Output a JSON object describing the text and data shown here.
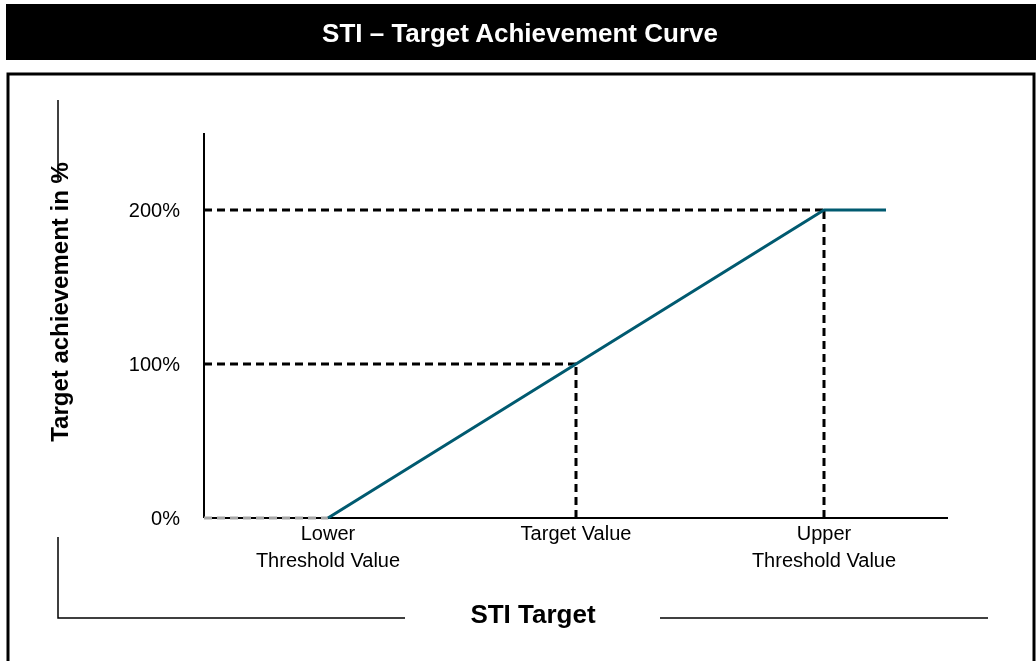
{
  "chart_data": {
    "type": "line",
    "title": "STI – Target Achievement Curve",
    "xlabel": "STI Target",
    "ylabel": "Target achievement  in %",
    "categories": [
      null,
      null,
      "Lower Threshold Value",
      null,
      null,
      null,
      "Target Value",
      null,
      null,
      null,
      "Upper Threshold Value",
      null,
      null
    ],
    "ylim": [
      0,
      250
    ],
    "yticks": [
      {
        "value": 0,
        "label": "0%"
      },
      {
        "value": 100,
        "label": "100%"
      },
      {
        "value": 200,
        "label": "200%"
      }
    ],
    "series": [
      {
        "values": [
          0,
          0,
          0,
          null,
          null,
          null,
          null,
          null,
          null,
          null,
          null,
          null,
          null
        ],
        "color": "#a6a6a6",
        "line_style": "dashed"
      },
      {
        "values": [
          null,
          null,
          0,
          25,
          50,
          75,
          100,
          125,
          150,
          175,
          200,
          200,
          null
        ],
        "color": "#005a70",
        "line_style": "solid"
      }
    ],
    "ref_lines": [
      {
        "axis": "y",
        "value": 100,
        "line_style": "dashed",
        "color": "#000000"
      },
      {
        "axis": "y",
        "value": 200,
        "line_style": "dashed",
        "color": "#000000"
      },
      {
        "axis": "x",
        "value": "Target Value",
        "line_style": "dashed",
        "color": "#000000"
      },
      {
        "axis": "x",
        "value": "Upper Threshold Value",
        "line_style": "dashed",
        "color": "#000000"
      }
    ],
    "grid": false,
    "marker": "none"
  }
}
